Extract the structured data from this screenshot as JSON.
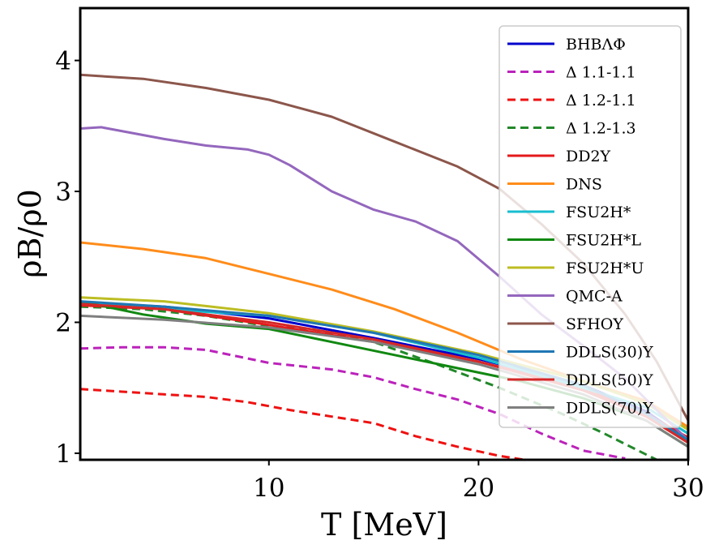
{
  "chart_data": {
    "type": "line",
    "xlabel": "T [MeV]",
    "ylabel": "ρB/ρ0",
    "xlim": [
      1,
      30
    ],
    "ylim": [
      0.95,
      4.4
    ],
    "xticks": [
      10,
      20,
      30
    ],
    "yticks": [
      1,
      2,
      3,
      4
    ],
    "xtick_labels": [
      "10",
      "20",
      "30"
    ],
    "ytick_labels": [
      "1",
      "2",
      "3",
      "4"
    ],
    "legend_position": "upper-right",
    "grid": false,
    "series": [
      {
        "name": "BHBΛΦ",
        "color": "#0000cc",
        "style": "solid",
        "x": [
          1,
          5,
          10,
          15,
          20,
          25,
          28,
          30
        ],
        "y": [
          2.15,
          2.12,
          2.03,
          1.88,
          1.72,
          1.52,
          1.32,
          1.1
        ]
      },
      {
        "name": "Δ 1.1-1.1",
        "color": "#bb22bb",
        "style": "dashed",
        "x": [
          1,
          3,
          5,
          7,
          10,
          13,
          15,
          17,
          19,
          21,
          23,
          25,
          27
        ],
        "y": [
          1.8,
          1.81,
          1.81,
          1.79,
          1.69,
          1.64,
          1.58,
          1.49,
          1.41,
          1.3,
          1.15,
          1.02,
          0.96
        ]
      },
      {
        "name": "Δ 1.2-1.1",
        "color": "#ee1111",
        "style": "dashed",
        "x": [
          1,
          3,
          5,
          7,
          9,
          11,
          13,
          15,
          17,
          19,
          21,
          23
        ],
        "y": [
          1.49,
          1.47,
          1.45,
          1.43,
          1.39,
          1.33,
          1.28,
          1.23,
          1.13,
          1.05,
          0.98,
          0.93
        ]
      },
      {
        "name": "Δ 1.2-1.3",
        "color": "#22882a",
        "style": "dashed",
        "x": [
          1,
          4,
          7,
          10,
          12,
          15,
          18,
          21,
          24,
          26,
          27.5,
          28.5
        ],
        "y": [
          2.12,
          2.1,
          2.05,
          1.97,
          1.95,
          1.85,
          1.68,
          1.5,
          1.3,
          1.15,
          1.03,
          0.95
        ]
      },
      {
        "name": "DD2Y",
        "color": "#e41a1c",
        "style": "solid",
        "x": [
          1,
          5,
          10,
          15,
          20,
          25,
          28,
          30
        ],
        "y": [
          2.13,
          2.1,
          1.98,
          1.85,
          1.7,
          1.5,
          1.3,
          1.12
        ]
      },
      {
        "name": "DNS",
        "color": "#ff8c1a",
        "style": "solid",
        "x": [
          1,
          4,
          7,
          10,
          13,
          16,
          19,
          22,
          25,
          28,
          30
        ],
        "y": [
          2.61,
          2.56,
          2.49,
          2.37,
          2.25,
          2.1,
          1.92,
          1.72,
          1.55,
          1.4,
          1.2
        ]
      },
      {
        "name": "FSU2H*",
        "color": "#17becf",
        "style": "solid",
        "x": [
          1,
          5,
          10,
          15,
          20,
          25,
          28,
          30
        ],
        "y": [
          2.15,
          2.1,
          2.05,
          1.92,
          1.73,
          1.5,
          1.35,
          1.15
        ]
      },
      {
        "name": "FSU2H*L",
        "color": "#118811",
        "style": "solid",
        "x": [
          1,
          4,
          7,
          10,
          13,
          16,
          19,
          22,
          25,
          28,
          30
        ],
        "y": [
          2.16,
          2.06,
          1.99,
          1.95,
          1.85,
          1.75,
          1.65,
          1.55,
          1.42,
          1.25,
          1.05
        ]
      },
      {
        "name": "FSU2H*U",
        "color": "#bcbd22",
        "style": "solid",
        "x": [
          1,
          5,
          10,
          15,
          20,
          25,
          28,
          30
        ],
        "y": [
          2.19,
          2.16,
          2.07,
          1.93,
          1.76,
          1.55,
          1.38,
          1.18
        ]
      },
      {
        "name": "QMC-A",
        "color": "#9467bd",
        "style": "solid",
        "x": [
          1,
          2,
          5,
          7,
          9,
          10,
          11,
          13,
          15,
          17,
          19,
          21,
          23,
          25,
          27,
          28.5,
          30
        ],
        "y": [
          3.48,
          3.49,
          3.4,
          3.35,
          3.32,
          3.28,
          3.2,
          3.0,
          2.86,
          2.77,
          2.62,
          2.35,
          2.06,
          1.82,
          1.57,
          1.33,
          1.1
        ]
      },
      {
        "name": "SFHOY",
        "color": "#8c564b",
        "style": "solid",
        "x": [
          1,
          4,
          7,
          10,
          13,
          16,
          19,
          21,
          23,
          25,
          27,
          28.5,
          30
        ],
        "y": [
          3.89,
          3.86,
          3.79,
          3.7,
          3.57,
          3.38,
          3.19,
          3.02,
          2.75,
          2.45,
          2.06,
          1.7,
          1.25
        ]
      },
      {
        "name": "DDLS(30)Y",
        "color": "#1f77b4",
        "style": "solid",
        "x": [
          1,
          5,
          10,
          15,
          20,
          25,
          28,
          30
        ],
        "y": [
          2.16,
          2.12,
          2.05,
          1.92,
          1.75,
          1.52,
          1.3,
          1.1
        ]
      },
      {
        "name": "DDLS(50)Y",
        "color": "#d62728",
        "style": "solid",
        "x": [
          1,
          5,
          10,
          15,
          20,
          25,
          28,
          30
        ],
        "y": [
          2.14,
          2.1,
          2.0,
          1.87,
          1.7,
          1.48,
          1.28,
          1.08
        ]
      },
      {
        "name": "DDLS(70)Y",
        "color": "#7f7f7f",
        "style": "solid",
        "x": [
          1,
          5,
          10,
          15,
          20,
          25,
          28,
          30
        ],
        "y": [
          2.05,
          2.02,
          1.96,
          1.85,
          1.68,
          1.45,
          1.25,
          1.05
        ]
      }
    ]
  }
}
